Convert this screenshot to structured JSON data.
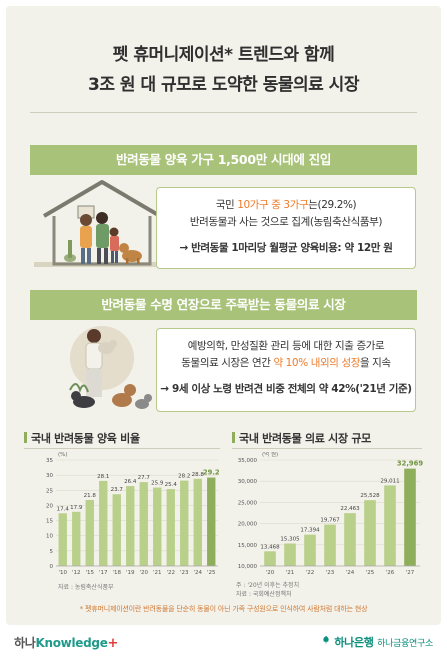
{
  "title": {
    "line1": "펫 휴머니제이션* 트렌드와 함께",
    "line2": "3조 원 대 규모로 도약한 동물의료 시장"
  },
  "section1": {
    "banner": "반려동물 양육 가구 1,500만 시대에 진입",
    "line1_a": "국민 ",
    "line1_hl": "10가구 중 3가구",
    "line1_b": "는(29.2%)",
    "line2": "반려동물과 사는 것으로 집계(농림축산식품부)",
    "line3": "→ 반려동물 1마리당 월평균 양육비용: 약 12만 원"
  },
  "section2": {
    "banner": "반려동물 수명 연장으로 주목받는 동물의료 시장",
    "line1": "예방의학, 만성질환 관리 등에 대한 지출 증가로",
    "line2_a": "동물의료 시장은 연간 ",
    "line2_hl": "약 10% 내외의 성장",
    "line2_b": "을 지속",
    "line3": "→ 9세 이상 노령 반려견 비중 전체의 약 42%('21년 기준)"
  },
  "left_chart": {
    "title": "국내 반려동물 양육 비율",
    "source": "자료 : 농림축산식품부"
  },
  "right_chart": {
    "title": "국내 반려동물 의료 시장 규모",
    "note1": "주 : '20년 이후는 추정치",
    "note2": "자료 : 국회예산정책처"
  },
  "footnote": "* 펫휴머니제이션이란 반려동물을 단순히 동물이 아닌 가족 구성원으로 인식하여 사람처럼 대하는 현상",
  "footer": {
    "left_a": "하나",
    "left_b": "Knowledge",
    "left_plus": "+",
    "right_a": "하나은행",
    "right_b": "하나금융연구소"
  },
  "colors": {
    "banner": "#a9c27a",
    "bar_light": "#b9d08a",
    "bar_dark": "#8fae5c",
    "highlight": "#ef7a2a"
  },
  "chart_data": [
    {
      "type": "bar",
      "title": "국내 반려동물 양육 비율",
      "ylabel": "(%)",
      "categories": [
        "'10",
        "'12",
        "'15",
        "'17",
        "'18",
        "'19",
        "'20",
        "'21",
        "'22",
        "'23",
        "'24",
        "'25"
      ],
      "values": [
        17.4,
        17.9,
        21.8,
        28.1,
        23.7,
        26.4,
        27.7,
        25.9,
        25.4,
        28.2,
        28.8,
        29.2
      ],
      "ylim": [
        0,
        35
      ],
      "yticks": [
        0,
        5,
        10,
        15,
        20,
        25,
        30,
        35
      ],
      "grid": true
    },
    {
      "type": "bar",
      "title": "국내 반려동물 의료 시장 규모",
      "ylabel": "(억 원)",
      "categories": [
        "'20",
        "'21",
        "'22",
        "'23",
        "'24",
        "'25",
        "'26",
        "'27"
      ],
      "values": [
        13468,
        15305,
        17394,
        19767,
        22463,
        25528,
        29011,
        32969
      ],
      "ylim": [
        10000,
        35000
      ],
      "yticks": [
        10000,
        15000,
        20000,
        25000,
        30000,
        35000
      ],
      "grid": true
    }
  ]
}
